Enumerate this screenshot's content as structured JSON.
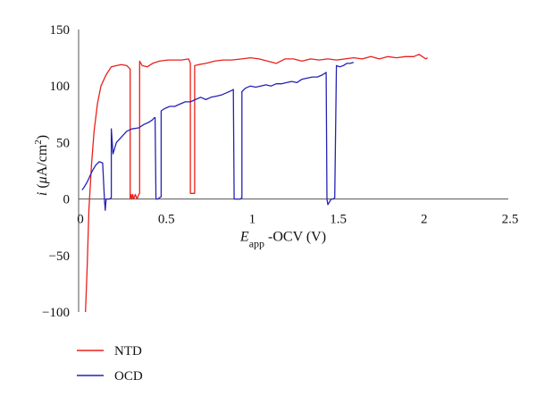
{
  "chart_data": {
    "type": "line",
    "title": "",
    "xlabel": "E_app -OCV (V)",
    "xlabel_parts": {
      "italic": "E",
      "sub": "app",
      "rest": " -OCV (V)"
    },
    "ylabel": "i (μA/cm²)",
    "ylabel_parts": {
      "italic": "i",
      "open": " (",
      "mu": "μ",
      "unit": "A/cm",
      "sup": "2",
      "close": ")"
    },
    "xlim": [
      0,
      2.5
    ],
    "ylim": [
      -100,
      150
    ],
    "x_ticks": [
      {
        "value": 0,
        "label": "0"
      },
      {
        "value": 0.5,
        "label": "0.5"
      },
      {
        "value": 1,
        "label": "1"
      },
      {
        "value": 1.5,
        "label": "1.5"
      },
      {
        "value": 2,
        "label": "2"
      },
      {
        "value": 2.5,
        "label": "2.5"
      }
    ],
    "y_ticks": [
      {
        "value": -100,
        "label": "−100"
      },
      {
        "value": -50,
        "label": "−50"
      },
      {
        "value": 0,
        "label": "0"
      },
      {
        "value": 50,
        "label": "50"
      },
      {
        "value": 100,
        "label": "100"
      },
      {
        "value": 150,
        "label": "150"
      }
    ],
    "grid": false,
    "legend_position": "bottom-left",
    "series": [
      {
        "name": "NTD",
        "color": "#e8211c",
        "x": [
          0.04,
          0.05,
          0.06,
          0.075,
          0.09,
          0.11,
          0.13,
          0.16,
          0.19,
          0.22,
          0.25,
          0.28,
          0.3,
          0.3,
          0.305,
          0.31,
          0.315,
          0.32,
          0.33,
          0.34,
          0.35,
          0.355,
          0.355,
          0.37,
          0.4,
          0.43,
          0.47,
          0.52,
          0.56,
          0.6,
          0.64,
          0.65,
          0.65,
          0.655,
          0.67,
          0.675,
          0.675,
          0.7,
          0.74,
          0.79,
          0.84,
          0.89,
          0.95,
          1.0,
          1.05,
          1.1,
          1.15,
          1.2,
          1.25,
          1.3,
          1.35,
          1.4,
          1.45,
          1.5,
          1.55,
          1.6,
          1.65,
          1.7,
          1.75,
          1.8,
          1.85,
          1.9,
          1.95,
          1.98,
          2.0,
          2.02,
          2.03
        ],
        "y": [
          -100,
          -60,
          -10,
          30,
          60,
          85,
          100,
          110,
          117,
          118,
          119,
          118,
          115,
          0,
          4,
          0,
          4,
          0,
          4,
          0,
          4,
          5,
          122,
          118,
          117,
          120,
          122,
          123,
          123,
          123,
          124,
          120,
          5,
          5,
          5,
          5,
          118,
          119,
          120,
          122,
          123,
          123,
          124,
          125,
          124,
          122,
          120,
          124,
          124,
          122,
          124,
          123,
          124,
          123,
          124,
          125,
          124,
          126,
          124,
          126,
          125,
          126,
          126,
          128,
          126,
          124,
          125
        ]
      },
      {
        "name": "OCD",
        "color": "#2323b5",
        "x": [
          0.02,
          0.03,
          0.05,
          0.08,
          0.1,
          0.12,
          0.14,
          0.15,
          0.155,
          0.16,
          0.17,
          0.18,
          0.19,
          0.19,
          0.2,
          0.21,
          0.22,
          0.25,
          0.28,
          0.31,
          0.35,
          0.38,
          0.41,
          0.43,
          0.44,
          0.445,
          0.45,
          0.46,
          0.47,
          0.48,
          0.48,
          0.5,
          0.53,
          0.56,
          0.59,
          0.62,
          0.65,
          0.68,
          0.71,
          0.74,
          0.77,
          0.8,
          0.83,
          0.86,
          0.89,
          0.9,
          0.905,
          0.91,
          0.93,
          0.94,
          0.95,
          0.95,
          0.97,
          1.0,
          1.03,
          1.06,
          1.09,
          1.12,
          1.15,
          1.18,
          1.21,
          1.24,
          1.27,
          1.3,
          1.33,
          1.36,
          1.39,
          1.42,
          1.44,
          1.445,
          1.45,
          1.47,
          1.48,
          1.49,
          1.5,
          1.52,
          1.54,
          1.56,
          1.58,
          1.6
        ],
        "y": [
          8,
          10,
          15,
          25,
          30,
          33,
          32,
          0,
          -10,
          0,
          0,
          0,
          1,
          62,
          40,
          45,
          50,
          55,
          60,
          62,
          63,
          66,
          68,
          70,
          72,
          72,
          0,
          0,
          1,
          2,
          78,
          80,
          82,
          82,
          84,
          86,
          86,
          88,
          90,
          88,
          90,
          91,
          92,
          94,
          96,
          97,
          0,
          0,
          0,
          0,
          1,
          95,
          98,
          100,
          99,
          100,
          101,
          100,
          102,
          102,
          103,
          104,
          103,
          106,
          107,
          108,
          108,
          110,
          112,
          0,
          -5,
          0,
          0,
          1,
          118,
          117,
          118,
          120,
          120,
          121
        ]
      }
    ]
  }
}
